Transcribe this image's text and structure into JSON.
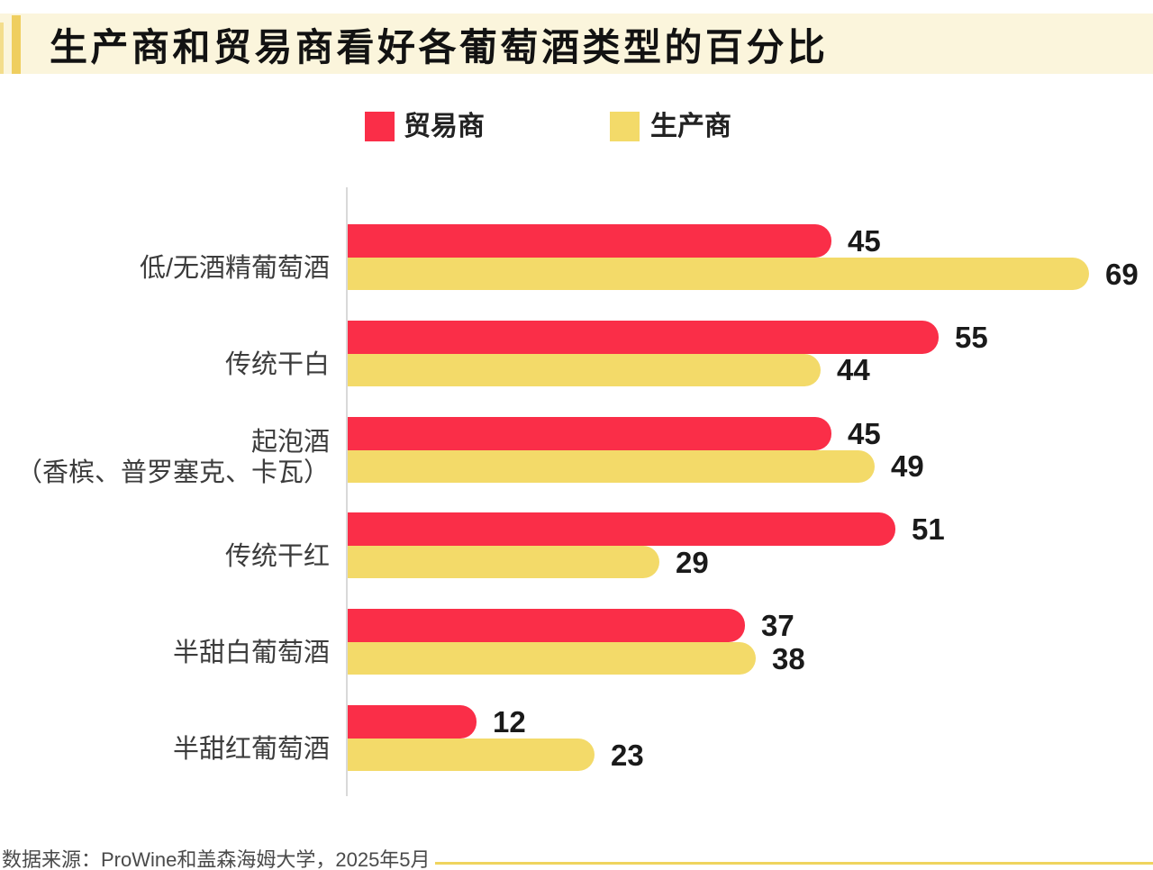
{
  "title": "生产商和贸易商看好各葡萄酒类型的百分比",
  "legend": {
    "items": [
      {
        "label": "贸易商",
        "color": "#FA2E48"
      },
      {
        "label": "生产商",
        "color": "#F3DA69"
      }
    ]
  },
  "chart_data": {
    "type": "bar",
    "orientation": "horizontal",
    "title": "生产商和贸易商看好各葡萄酒类型的百分比",
    "categories": [
      [
        "低/无酒精葡萄酒"
      ],
      [
        "传统干白"
      ],
      [
        "起泡酒",
        "（香槟、普罗塞克、卡瓦）"
      ],
      [
        "传统干红"
      ],
      [
        "半甜白葡萄酒"
      ],
      [
        "半甜红葡萄酒"
      ]
    ],
    "series": [
      {
        "name": "贸易商",
        "color": "#FA2E48",
        "values": [
          45,
          55,
          45,
          51,
          37,
          12
        ]
      },
      {
        "name": "生产商",
        "color": "#F3DA69",
        "values": [
          69,
          44,
          49,
          29,
          38,
          23
        ]
      }
    ],
    "value_labels_shown": true,
    "legend_position": "top",
    "xlim": [
      0,
      75
    ],
    "grid": false
  },
  "footer": {
    "source": "数据来源：ProWine和盖森海姆大学，2025年5月"
  },
  "colors": {
    "header_band": "#FBF5DC",
    "accent_bar": "#EFCE5F",
    "edge_strip": "#F3DD8C",
    "footer_line": "#EFD45E",
    "axis": "#D9D9D9"
  }
}
